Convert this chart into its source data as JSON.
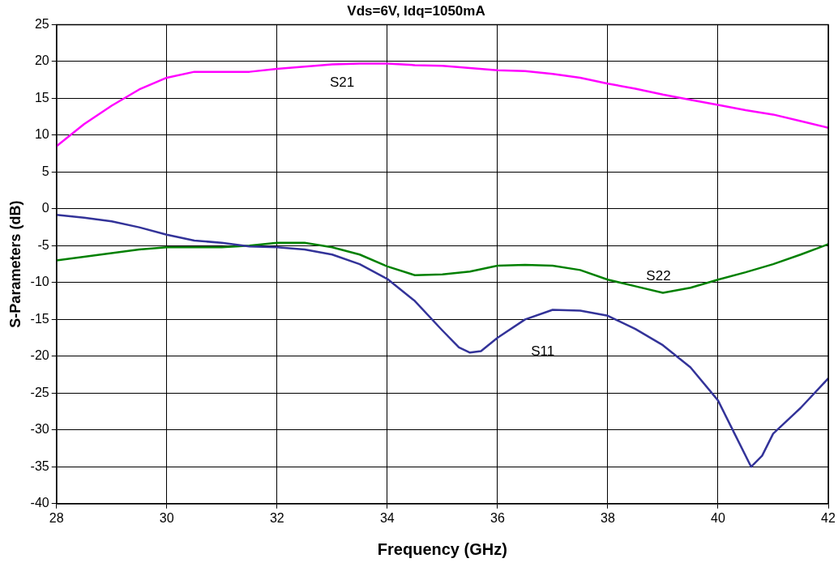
{
  "chart_data": {
    "type": "line",
    "title": "Vds=6V, Idq=1050mA",
    "xlabel": "Frequency (GHz)",
    "ylabel": "S-Parameters (dB)",
    "xlim": [
      28,
      42
    ],
    "xticks": [
      28,
      30,
      32,
      34,
      36,
      38,
      40,
      42
    ],
    "ylim": [
      -40,
      25
    ],
    "yticks": [
      -40,
      -35,
      -30,
      -25,
      -20,
      -15,
      -10,
      -5,
      0,
      5,
      10,
      15,
      20,
      25
    ],
    "grid": true,
    "legend": false,
    "marker": "none",
    "line_style": "solid",
    "series": [
      {
        "name": "S21",
        "color": "#ff00ff",
        "x": [
          28,
          28.5,
          29,
          29.5,
          30,
          30.5,
          31,
          31.5,
          32,
          32.5,
          33,
          33.5,
          34,
          34.5,
          35,
          35.5,
          36,
          36.5,
          37,
          37.5,
          38,
          38.5,
          39,
          39.5,
          40,
          40.5,
          41,
          41.5,
          42
        ],
        "values": [
          8.5,
          11.5,
          14,
          16.2,
          17.8,
          18.6,
          18.6,
          18.6,
          19,
          19.3,
          19.6,
          19.7,
          19.7,
          19.5,
          19.4,
          19.1,
          18.8,
          18.7,
          18.3,
          17.8,
          17,
          16.3,
          15.5,
          14.8,
          14.1,
          13.4,
          12.8,
          11.9,
          11
        ]
      },
      {
        "name": "S11",
        "color": "#333399",
        "x": [
          28,
          28.5,
          29,
          29.5,
          30,
          30.5,
          31,
          31.5,
          32,
          32.5,
          33,
          33.5,
          34,
          34.5,
          35,
          35.3,
          35.5,
          35.7,
          36,
          36.5,
          37,
          37.5,
          38,
          38.5,
          39,
          39.5,
          40,
          40.3,
          40.6,
          40.8,
          41,
          41.5,
          42
        ],
        "values": [
          -0.8,
          -1.2,
          -1.7,
          -2.5,
          -3.5,
          -4.3,
          -4.6,
          -5.1,
          -5.2,
          -5.5,
          -6.2,
          -7.5,
          -9.5,
          -12.5,
          -16.5,
          -18.8,
          -19.5,
          -19.3,
          -17.5,
          -15,
          -13.7,
          -13.8,
          -14.5,
          -16.3,
          -18.5,
          -21.5,
          -26,
          -30.5,
          -35,
          -33.5,
          -30.5,
          -27,
          -23
        ]
      },
      {
        "name": "S22",
        "color": "#008000",
        "x": [
          28,
          28.5,
          29,
          29.5,
          30,
          30.5,
          31,
          31.5,
          32,
          32.5,
          33,
          33.5,
          34,
          34.5,
          35,
          35.5,
          36,
          36.5,
          37,
          37.5,
          38,
          38.5,
          39,
          39.5,
          40,
          40.5,
          41,
          41.5,
          42
        ],
        "values": [
          -7,
          -6.5,
          -6,
          -5.5,
          -5.2,
          -5.2,
          -5.2,
          -5,
          -4.6,
          -4.6,
          -5.2,
          -6.2,
          -7.8,
          -9,
          -8.9,
          -8.5,
          -7.7,
          -7.6,
          -7.7,
          -8.3,
          -9.6,
          -10.5,
          -11.4,
          -10.7,
          -9.6,
          -8.6,
          -7.5,
          -6.2,
          -4.8
        ]
      }
    ]
  }
}
